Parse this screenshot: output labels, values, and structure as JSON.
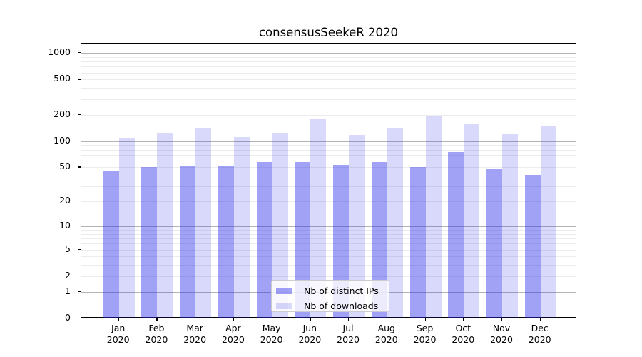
{
  "chart_data": {
    "type": "bar",
    "title": "consensusSeekeR 2020",
    "categories": [
      "Jan",
      "Feb",
      "Mar",
      "Apr",
      "May",
      "Jun",
      "Jul",
      "Aug",
      "Sep",
      "Oct",
      "Nov",
      "Dec"
    ],
    "x_tick_year": "2020",
    "series": [
      {
        "name": "Nb of distinct IPs",
        "color": "rgba(40,40,235,0.44)",
        "values": [
          45,
          50,
          52,
          52,
          58,
          58,
          53,
          58,
          50,
          75,
          48,
          41
        ]
      },
      {
        "name": "Nb of downloads",
        "color": "rgba(40,40,235,0.175)",
        "values": [
          110,
          125,
          142,
          112,
          125,
          180,
          118,
          143,
          190,
          160,
          120,
          148
        ]
      }
    ],
    "y_axis": {
      "scale": "log1p",
      "ticks": [
        0,
        1,
        2,
        5,
        10,
        20,
        50,
        100,
        200,
        500,
        1000
      ],
      "range": [
        0,
        1000
      ]
    },
    "grid": "both",
    "legend_position": "lower-center",
    "colors": {
      "major_grid": "#b3b3b3",
      "minor_grid": "#ececec",
      "axis": "#000000"
    }
  }
}
